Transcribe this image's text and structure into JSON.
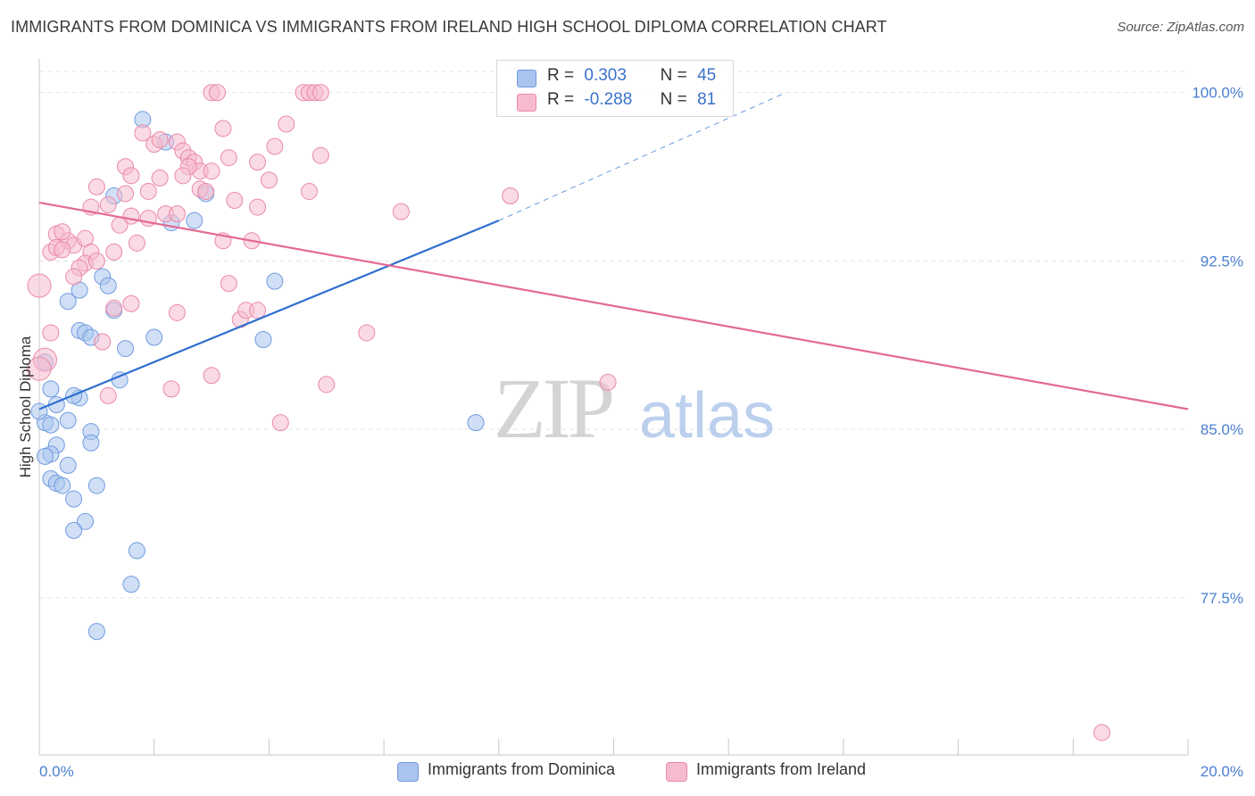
{
  "title": "IMMIGRANTS FROM DOMINICA VS IMMIGRANTS FROM IRELAND HIGH SCHOOL DIPLOMA CORRELATION CHART",
  "source": "Source: ZipAtlas.com",
  "watermark": {
    "zip": "ZIP",
    "atlas": "atlas"
  },
  "stats": [
    {
      "r_label": "R =",
      "r_value": "0.303",
      "n_label": "N =",
      "n_value": "45",
      "color": "#a9c4ee",
      "border": "#6f9be0"
    },
    {
      "r_label": "R =",
      "r_value": "-0.288",
      "n_label": "N =",
      "n_value": "81",
      "color": "#f6bccd",
      "border": "#ea89a8"
    }
  ],
  "legend": [
    {
      "label": "Immigrants from Dominica",
      "color": "#a9c4ee",
      "border": "#6f9be0"
    },
    {
      "label": "Immigrants from Ireland",
      "color": "#f6bccd",
      "border": "#ea89a8"
    }
  ],
  "chart_data": {
    "type": "scatter",
    "title": "IMMIGRANTS FROM DOMINICA VS IMMIGRANTS FROM IRELAND HIGH SCHOOL DIPLOMA CORRELATION CHART",
    "xlabel": "",
    "ylabel": "High School Diploma",
    "xlim": [
      0,
      20
    ],
    "ylim": [
      70.5,
      101.5
    ],
    "x_tick_labels": [
      "0.0%",
      "20.0%"
    ],
    "y_ticks": [
      77.5,
      85.0,
      92.5,
      100.0
    ],
    "y_tick_labels": [
      "77.5%",
      "85.0%",
      "92.5%",
      "100.0%"
    ],
    "grid": true,
    "series": [
      {
        "name": "Immigrants from Dominica",
        "color": "#6f9be0",
        "fill": "#a9c4ee",
        "trend": {
          "x": [
            0.0,
            8.0
          ],
          "y": [
            85.9,
            94.3
          ],
          "dashed_to": [
            13.0,
            100.0
          ],
          "color": "#2f6fd0"
        },
        "points": [
          [
            1.8,
            98.8
          ],
          [
            2.2,
            97.8
          ],
          [
            1.3,
            95.4
          ],
          [
            2.9,
            95.5
          ],
          [
            2.3,
            94.2
          ],
          [
            2.7,
            94.3
          ],
          [
            1.1,
            91.8
          ],
          [
            0.7,
            91.2
          ],
          [
            1.2,
            91.4
          ],
          [
            0.5,
            90.7
          ],
          [
            1.3,
            90.3
          ],
          [
            4.1,
            91.6
          ],
          [
            0.7,
            89.4
          ],
          [
            0.8,
            89.3
          ],
          [
            0.9,
            89.1
          ],
          [
            2.0,
            89.1
          ],
          [
            3.9,
            89.0
          ],
          [
            1.5,
            88.6
          ],
          [
            0.1,
            88.0
          ],
          [
            1.4,
            87.2
          ],
          [
            0.2,
            86.8
          ],
          [
            0.3,
            86.1
          ],
          [
            0.7,
            86.4
          ],
          [
            0.6,
            86.5
          ],
          [
            0.5,
            85.4
          ],
          [
            0.1,
            85.3
          ],
          [
            0.0,
            85.8
          ],
          [
            7.6,
            85.3
          ],
          [
            0.3,
            84.3
          ],
          [
            0.9,
            84.9
          ],
          [
            0.9,
            84.4
          ],
          [
            0.2,
            83.9
          ],
          [
            0.1,
            83.8
          ],
          [
            0.5,
            83.4
          ],
          [
            0.2,
            82.8
          ],
          [
            0.3,
            82.6
          ],
          [
            0.4,
            82.5
          ],
          [
            1.0,
            82.5
          ],
          [
            0.6,
            81.9
          ],
          [
            0.8,
            80.9
          ],
          [
            0.6,
            80.5
          ],
          [
            1.7,
            79.6
          ],
          [
            1.6,
            78.1
          ],
          [
            1.0,
            76.0
          ],
          [
            0.2,
            85.2
          ]
        ]
      },
      {
        "name": "Immigrants from Ireland",
        "color": "#ea89a8",
        "fill": "#f6bccd",
        "trend": {
          "x": [
            0.0,
            20.0
          ],
          "y": [
            95.1,
            85.9
          ],
          "color": "#e26a93"
        },
        "points": [
          [
            3.0,
            100.0
          ],
          [
            3.1,
            100.0
          ],
          [
            4.6,
            100.0
          ],
          [
            4.7,
            100.0
          ],
          [
            4.8,
            100.0
          ],
          [
            4.9,
            100.0
          ],
          [
            3.2,
            98.4
          ],
          [
            4.3,
            98.6
          ],
          [
            1.8,
            98.2
          ],
          [
            2.0,
            97.7
          ],
          [
            2.1,
            97.9
          ],
          [
            2.4,
            97.8
          ],
          [
            2.5,
            97.4
          ],
          [
            2.6,
            97.1
          ],
          [
            2.7,
            96.9
          ],
          [
            2.8,
            96.5
          ],
          [
            3.3,
            97.1
          ],
          [
            3.8,
            96.9
          ],
          [
            4.1,
            97.6
          ],
          [
            4.9,
            97.2
          ],
          [
            1.5,
            96.7
          ],
          [
            1.6,
            96.3
          ],
          [
            2.1,
            96.2
          ],
          [
            2.6,
            96.7
          ],
          [
            4.0,
            96.1
          ],
          [
            1.0,
            95.8
          ],
          [
            1.5,
            95.5
          ],
          [
            1.9,
            95.6
          ],
          [
            2.8,
            95.7
          ],
          [
            3.4,
            95.2
          ],
          [
            3.8,
            94.9
          ],
          [
            4.7,
            95.6
          ],
          [
            8.2,
            95.4
          ],
          [
            0.9,
            94.9
          ],
          [
            1.6,
            94.5
          ],
          [
            1.9,
            94.4
          ],
          [
            2.2,
            94.6
          ],
          [
            2.4,
            94.6
          ],
          [
            6.3,
            94.7
          ],
          [
            1.4,
            94.1
          ],
          [
            0.3,
            93.7
          ],
          [
            0.5,
            93.4
          ],
          [
            0.6,
            93.2
          ],
          [
            0.8,
            93.5
          ],
          [
            1.7,
            93.3
          ],
          [
            3.2,
            93.4
          ],
          [
            3.7,
            93.4
          ],
          [
            0.2,
            92.9
          ],
          [
            0.3,
            93.1
          ],
          [
            0.4,
            93.0
          ],
          [
            0.9,
            92.9
          ],
          [
            1.3,
            92.9
          ],
          [
            0.8,
            92.4
          ],
          [
            1.0,
            92.5
          ],
          [
            0.7,
            92.2
          ],
          [
            0.6,
            91.8
          ],
          [
            0.0,
            91.4
          ],
          [
            3.3,
            91.5
          ],
          [
            1.6,
            90.6
          ],
          [
            1.3,
            90.4
          ],
          [
            2.4,
            90.2
          ],
          [
            3.5,
            89.9
          ],
          [
            3.6,
            90.3
          ],
          [
            3.8,
            90.3
          ],
          [
            0.2,
            89.3
          ],
          [
            5.7,
            89.3
          ],
          [
            1.1,
            88.9
          ],
          [
            0.1,
            88.1
          ],
          [
            0.0,
            87.7
          ],
          [
            3.0,
            87.4
          ],
          [
            2.3,
            86.8
          ],
          [
            5.0,
            87.0
          ],
          [
            9.9,
            87.1
          ],
          [
            4.2,
            85.3
          ],
          [
            1.2,
            86.5
          ],
          [
            18.5,
            71.5
          ],
          [
            0.4,
            93.8
          ],
          [
            2.9,
            95.6
          ],
          [
            1.2,
            95.0
          ],
          [
            2.5,
            96.3
          ],
          [
            3.0,
            96.5
          ]
        ]
      }
    ]
  }
}
